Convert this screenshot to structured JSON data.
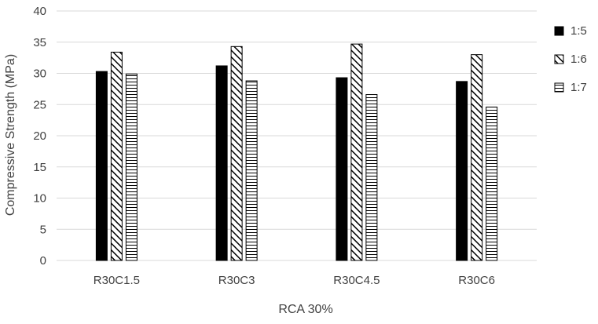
{
  "chart_data": {
    "type": "bar",
    "title": "",
    "xlabel": "RCA 30%",
    "ylabel": "Compressive Strength (MPa)",
    "ylim": [
      0,
      40
    ],
    "yticks": [
      0,
      5,
      10,
      15,
      20,
      25,
      30,
      35,
      40
    ],
    "grid": true,
    "legend_position": "right",
    "categories": [
      "R30C1.5",
      "R30C3",
      "R30C4.5",
      "R30C6"
    ],
    "series": [
      {
        "name": "1:5",
        "pattern": "solid-black",
        "values": [
          30.3,
          31.2,
          29.3,
          28.7
        ]
      },
      {
        "name": "1:6",
        "pattern": "diagonal-hatch",
        "values": [
          33.4,
          34.3,
          34.7,
          33.0
        ]
      },
      {
        "name": "1:7",
        "pattern": "horizontal-lines",
        "values": [
          29.9,
          28.8,
          26.6,
          24.6
        ]
      }
    ],
    "colors": {
      "grid": "#d9d9d9",
      "bar_fill": "#000000",
      "text": "#404040"
    }
  }
}
